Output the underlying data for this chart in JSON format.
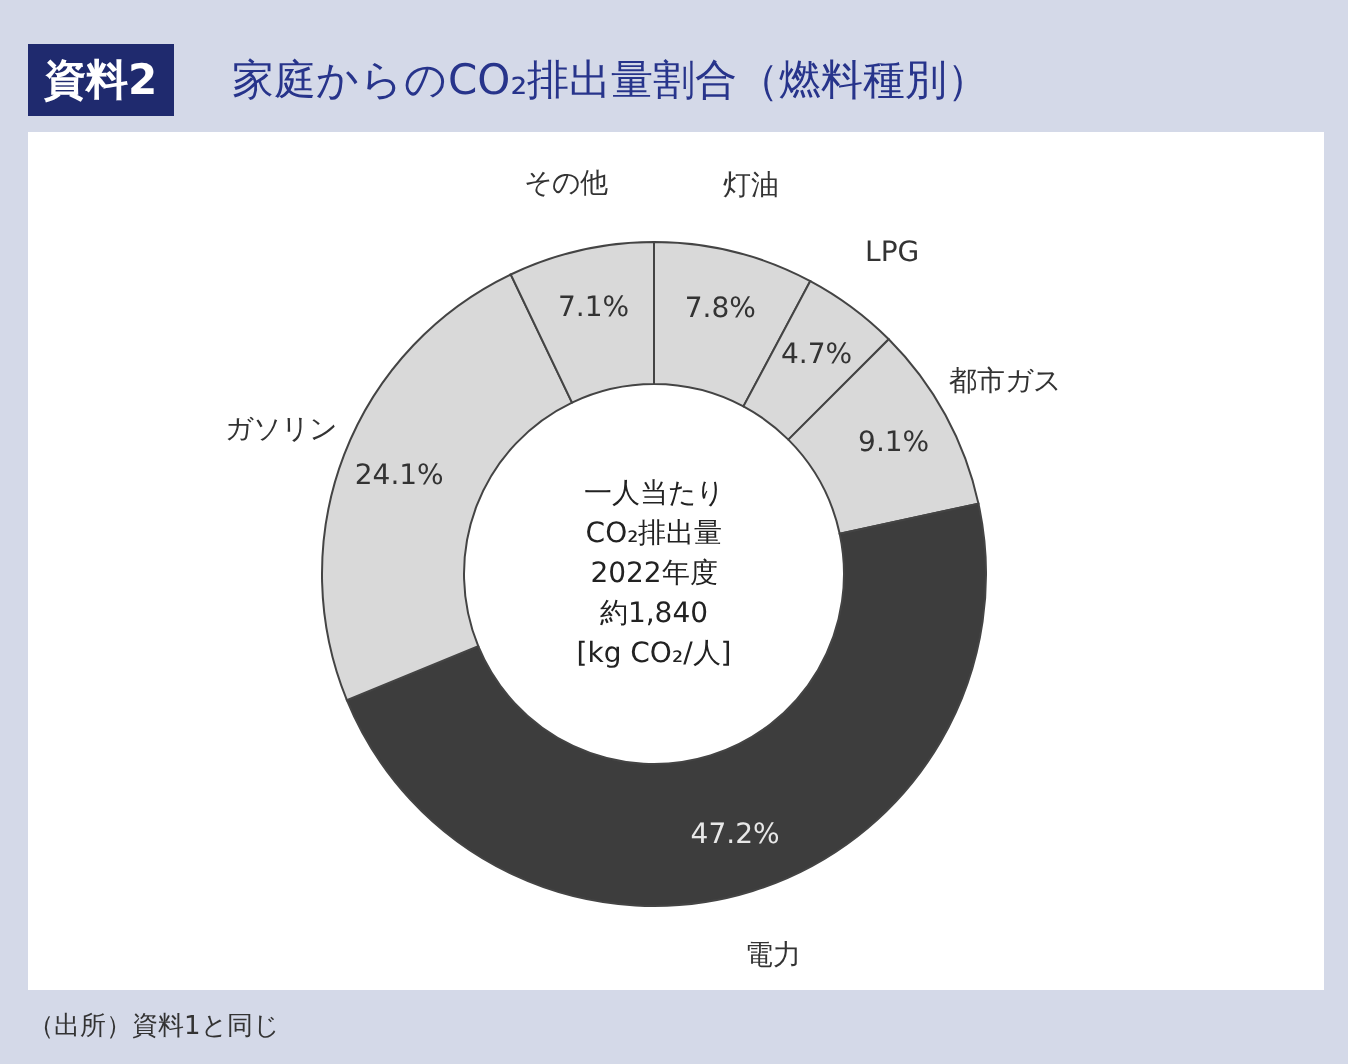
{
  "chart_data": {
    "type": "donut",
    "title": "家庭からのCO₂排出量割合（燃料種別）",
    "categories": [
      "灯油",
      "LPG",
      "都市ガス",
      "電力",
      "ガソリン",
      "その他"
    ],
    "values": [
      7.8,
      4.7,
      9.1,
      47.2,
      24.1,
      7.1
    ],
    "colors": [
      "#d9d9d9",
      "#d9d9d9",
      "#d9d9d9",
      "#3d3d3d",
      "#d9d9d9",
      "#d9d9d9"
    ],
    "value_labels": [
      "7.8%",
      "4.7%",
      "9.1%",
      "47.2%",
      "24.1%",
      "7.1%"
    ],
    "annotations": [
      "資料2",
      "一人当たり",
      "CO₂排出量",
      "2022年度",
      "約1,840",
      "[kg CO₂/人]",
      "（出所）資料1と同じ"
    ]
  }
}
